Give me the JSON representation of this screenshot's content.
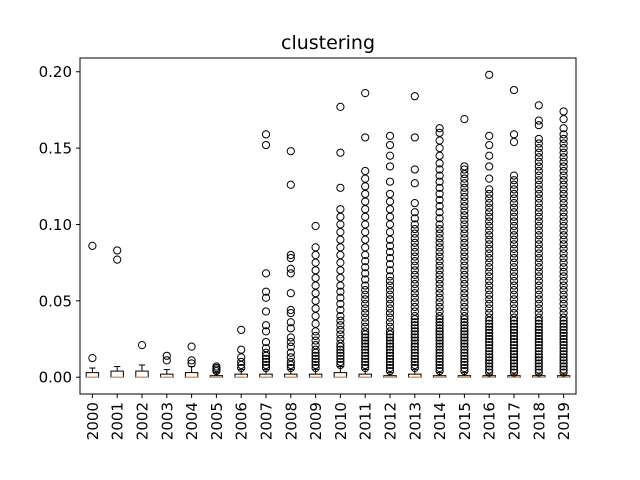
{
  "chart_data": {
    "type": "box",
    "title": "clustering",
    "xlabel": "",
    "ylabel": "",
    "ylim": [
      -0.011,
      0.209
    ],
    "yticks": [
      0.0,
      0.05,
      0.1,
      0.15,
      0.2
    ],
    "ytick_labels": [
      "0.00",
      "0.05",
      "0.10",
      "0.15",
      "0.20"
    ],
    "grid": false,
    "median_color": "#f4a460",
    "categories": [
      "2000",
      "2001",
      "2002",
      "2003",
      "2004",
      "2005",
      "2006",
      "2007",
      "2008",
      "2009",
      "2010",
      "2011",
      "2012",
      "2013",
      "2014",
      "2015",
      "2016",
      "2017",
      "2018",
      "2019"
    ],
    "boxes": [
      {
        "year": "2000",
        "q1": 0.0,
        "median": 0.0,
        "q3": 0.003,
        "whisker_low": 0.0,
        "whisker_high": 0.006,
        "outliers": [
          0.0125,
          0.086
        ]
      },
      {
        "year": "2001",
        "q1": 0.0,
        "median": 0.0,
        "q3": 0.004,
        "whisker_low": 0.0,
        "whisker_high": 0.007,
        "outliers": [
          0.077,
          0.083
        ]
      },
      {
        "year": "2002",
        "q1": 0.0,
        "median": 0.0,
        "q3": 0.004,
        "whisker_low": 0.0,
        "whisker_high": 0.008,
        "outliers": [
          0.021
        ]
      },
      {
        "year": "2003",
        "q1": 0.0,
        "median": 0.0,
        "q3": 0.002,
        "whisker_low": 0.0,
        "whisker_high": 0.005,
        "outliers": [
          0.011,
          0.014
        ]
      },
      {
        "year": "2004",
        "q1": 0.0,
        "median": 0.0,
        "q3": 0.003,
        "whisker_low": 0.0,
        "whisker_high": 0.007,
        "outliers": [
          0.009,
          0.011,
          0.02
        ]
      },
      {
        "year": "2005",
        "q1": 0.0,
        "median": 0.0,
        "q3": 0.001,
        "whisker_low": 0.0,
        "whisker_high": 0.003,
        "outliers": [
          0.004,
          0.005,
          0.006,
          0.007
        ]
      },
      {
        "year": "2006",
        "q1": 0.0,
        "median": 0.0,
        "q3": 0.002,
        "whisker_low": 0.0,
        "whisker_high": 0.005,
        "outliers": [
          0.006,
          0.008,
          0.01,
          0.013,
          0.018,
          0.031
        ]
      },
      {
        "year": "2007",
        "q1": 0.0,
        "median": 0.0,
        "q3": 0.002,
        "whisker_low": 0.0,
        "whisker_high": 0.005,
        "outliers": [
          0.006,
          0.008,
          0.01,
          0.012,
          0.014,
          0.016,
          0.019,
          0.023,
          0.03,
          0.034,
          0.043,
          0.052,
          0.056,
          0.068,
          0.152,
          0.159
        ]
      },
      {
        "year": "2008",
        "q1": 0.0,
        "median": 0.0,
        "q3": 0.002,
        "whisker_low": 0.0,
        "whisker_high": 0.005,
        "outliers": [
          0.006,
          0.008,
          0.01,
          0.013,
          0.016,
          0.02,
          0.023,
          0.026,
          0.032,
          0.036,
          0.042,
          0.044,
          0.055,
          0.068,
          0.071,
          0.078,
          0.08,
          0.126,
          0.148
        ]
      },
      {
        "year": "2009",
        "q1": 0.0,
        "median": 0.0,
        "q3": 0.002,
        "whisker_low": 0.0,
        "whisker_high": 0.005,
        "outliers": [
          0.006,
          0.008,
          0.01,
          0.012,
          0.014,
          0.016,
          0.018,
          0.021,
          0.024,
          0.027,
          0.03,
          0.035,
          0.04,
          0.045,
          0.05,
          0.055,
          0.06,
          0.065,
          0.07,
          0.075,
          0.08,
          0.085,
          0.099
        ]
      },
      {
        "year": "2010",
        "q1": 0.0,
        "median": 0.0,
        "q3": 0.003,
        "whisker_low": 0.0,
        "whisker_high": 0.007,
        "outliers": [
          0.008,
          0.01,
          0.012,
          0.014,
          0.016,
          0.018,
          0.02,
          0.022,
          0.025,
          0.028,
          0.031,
          0.034,
          0.037,
          0.04,
          0.044,
          0.048,
          0.052,
          0.056,
          0.06,
          0.065,
          0.07,
          0.075,
          0.08,
          0.085,
          0.09,
          0.095,
          0.1,
          0.105,
          0.11,
          0.124,
          0.147,
          0.177
        ]
      },
      {
        "year": "2011",
        "q1": 0.0,
        "median": 0.0,
        "q3": 0.002,
        "whisker_low": 0.0,
        "whisker_high": 0.005,
        "outliers": [
          0.006,
          0.008,
          0.01,
          0.012,
          0.014,
          0.016,
          0.018,
          0.02,
          0.022,
          0.024,
          0.026,
          0.028,
          0.03,
          0.033,
          0.036,
          0.039,
          0.042,
          0.045,
          0.048,
          0.051,
          0.054,
          0.057,
          0.06,
          0.064,
          0.068,
          0.072,
          0.076,
          0.08,
          0.085,
          0.09,
          0.095,
          0.1,
          0.105,
          0.11,
          0.115,
          0.12,
          0.125,
          0.13,
          0.135,
          0.157,
          0.186
        ]
      },
      {
        "year": "2012",
        "q1": 0.0,
        "median": 0.0,
        "q3": 0.001,
        "whisker_low": 0.0,
        "whisker_high": 0.003,
        "outliers": [
          0.004,
          0.006,
          0.008,
          0.01,
          0.012,
          0.014,
          0.016,
          0.018,
          0.02,
          0.022,
          0.024,
          0.026,
          0.028,
          0.03,
          0.033,
          0.036,
          0.039,
          0.042,
          0.045,
          0.048,
          0.051,
          0.054,
          0.057,
          0.06,
          0.063,
          0.066,
          0.07,
          0.074,
          0.078,
          0.082,
          0.086,
          0.09,
          0.095,
          0.1,
          0.105,
          0.11,
          0.115,
          0.12,
          0.128,
          0.138,
          0.145,
          0.152,
          0.158
        ]
      },
      {
        "year": "2013",
        "q1": 0.0,
        "median": 0.0,
        "q3": 0.002,
        "whisker_low": 0.0,
        "whisker_high": 0.005,
        "outliers": [
          0.006,
          0.008,
          0.01,
          0.012,
          0.014,
          0.016,
          0.018,
          0.02,
          0.022,
          0.024,
          0.026,
          0.028,
          0.03,
          0.032,
          0.034,
          0.036,
          0.038,
          0.04,
          0.043,
          0.046,
          0.049,
          0.052,
          0.055,
          0.058,
          0.061,
          0.064,
          0.067,
          0.07,
          0.073,
          0.076,
          0.079,
          0.082,
          0.085,
          0.088,
          0.091,
          0.094,
          0.097,
          0.1,
          0.104,
          0.108,
          0.114,
          0.127,
          0.136,
          0.157,
          0.184
        ]
      },
      {
        "year": "2014",
        "q1": 0.0,
        "median": 0.0,
        "q3": 0.001,
        "whisker_low": 0.0,
        "whisker_high": 0.003,
        "outliers": [
          0.004,
          0.006,
          0.008,
          0.01,
          0.012,
          0.014,
          0.016,
          0.018,
          0.02,
          0.022,
          0.024,
          0.026,
          0.028,
          0.03,
          0.032,
          0.034,
          0.036,
          0.038,
          0.04,
          0.043,
          0.046,
          0.049,
          0.052,
          0.055,
          0.058,
          0.061,
          0.064,
          0.067,
          0.07,
          0.073,
          0.076,
          0.079,
          0.082,
          0.085,
          0.088,
          0.091,
          0.094,
          0.097,
          0.1,
          0.104,
          0.108,
          0.112,
          0.116,
          0.12,
          0.124,
          0.128,
          0.132,
          0.136,
          0.14,
          0.145,
          0.15,
          0.155,
          0.16,
          0.163
        ]
      },
      {
        "year": "2015",
        "q1": 0.0,
        "median": 0.0,
        "q3": 0.001,
        "whisker_low": 0.0,
        "whisker_high": 0.003,
        "outliers": [
          0.004,
          0.006,
          0.008,
          0.01,
          0.012,
          0.014,
          0.016,
          0.018,
          0.02,
          0.022,
          0.024,
          0.026,
          0.028,
          0.03,
          0.032,
          0.034,
          0.036,
          0.038,
          0.04,
          0.043,
          0.046,
          0.049,
          0.052,
          0.055,
          0.058,
          0.061,
          0.064,
          0.067,
          0.07,
          0.073,
          0.076,
          0.079,
          0.082,
          0.085,
          0.088,
          0.091,
          0.094,
          0.097,
          0.1,
          0.103,
          0.106,
          0.109,
          0.112,
          0.115,
          0.118,
          0.121,
          0.124,
          0.127,
          0.13,
          0.133,
          0.136,
          0.138,
          0.169
        ]
      },
      {
        "year": "2016",
        "q1": 0.0,
        "median": 0.0,
        "q3": 0.001,
        "whisker_low": 0.0,
        "whisker_high": 0.002,
        "outliers": [
          0.003,
          0.005,
          0.007,
          0.009,
          0.011,
          0.013,
          0.015,
          0.017,
          0.019,
          0.021,
          0.023,
          0.025,
          0.027,
          0.029,
          0.031,
          0.033,
          0.035,
          0.037,
          0.039,
          0.042,
          0.045,
          0.048,
          0.051,
          0.054,
          0.057,
          0.06,
          0.063,
          0.066,
          0.069,
          0.072,
          0.075,
          0.078,
          0.081,
          0.084,
          0.087,
          0.09,
          0.093,
          0.096,
          0.099,
          0.102,
          0.105,
          0.108,
          0.111,
          0.114,
          0.117,
          0.12,
          0.123,
          0.13,
          0.138,
          0.145,
          0.152,
          0.158,
          0.198
        ]
      },
      {
        "year": "2017",
        "q1": 0.0,
        "median": 0.0,
        "q3": 0.001,
        "whisker_low": 0.0,
        "whisker_high": 0.002,
        "outliers": [
          0.003,
          0.005,
          0.007,
          0.009,
          0.011,
          0.013,
          0.015,
          0.017,
          0.019,
          0.021,
          0.023,
          0.025,
          0.027,
          0.029,
          0.031,
          0.033,
          0.035,
          0.037,
          0.039,
          0.042,
          0.045,
          0.048,
          0.051,
          0.054,
          0.057,
          0.06,
          0.063,
          0.066,
          0.069,
          0.072,
          0.075,
          0.078,
          0.081,
          0.084,
          0.087,
          0.09,
          0.093,
          0.096,
          0.099,
          0.102,
          0.105,
          0.108,
          0.111,
          0.114,
          0.117,
          0.12,
          0.123,
          0.126,
          0.129,
          0.132,
          0.154,
          0.159,
          0.188
        ]
      },
      {
        "year": "2018",
        "q1": 0.0,
        "median": 0.0,
        "q3": 0.001,
        "whisker_low": 0.0,
        "whisker_high": 0.002,
        "outliers": [
          0.003,
          0.005,
          0.007,
          0.009,
          0.011,
          0.013,
          0.015,
          0.017,
          0.019,
          0.021,
          0.023,
          0.025,
          0.027,
          0.029,
          0.031,
          0.033,
          0.035,
          0.037,
          0.039,
          0.042,
          0.045,
          0.048,
          0.051,
          0.054,
          0.057,
          0.06,
          0.063,
          0.066,
          0.069,
          0.072,
          0.075,
          0.078,
          0.081,
          0.084,
          0.087,
          0.09,
          0.093,
          0.096,
          0.099,
          0.102,
          0.105,
          0.108,
          0.111,
          0.114,
          0.117,
          0.12,
          0.123,
          0.126,
          0.129,
          0.132,
          0.135,
          0.138,
          0.141,
          0.144,
          0.147,
          0.15,
          0.153,
          0.156,
          0.165,
          0.168,
          0.178
        ]
      },
      {
        "year": "2019",
        "q1": 0.0,
        "median": 0.0,
        "q3": 0.001,
        "whisker_low": 0.0,
        "whisker_high": 0.002,
        "outliers": [
          0.003,
          0.005,
          0.007,
          0.009,
          0.011,
          0.013,
          0.015,
          0.017,
          0.019,
          0.021,
          0.023,
          0.025,
          0.027,
          0.029,
          0.031,
          0.033,
          0.035,
          0.037,
          0.039,
          0.042,
          0.045,
          0.048,
          0.051,
          0.054,
          0.057,
          0.06,
          0.063,
          0.066,
          0.069,
          0.072,
          0.075,
          0.078,
          0.081,
          0.084,
          0.087,
          0.09,
          0.093,
          0.096,
          0.099,
          0.102,
          0.105,
          0.108,
          0.111,
          0.114,
          0.117,
          0.12,
          0.123,
          0.126,
          0.129,
          0.132,
          0.135,
          0.138,
          0.141,
          0.144,
          0.147,
          0.15,
          0.153,
          0.156,
          0.159,
          0.163,
          0.169,
          0.174
        ]
      }
    ]
  }
}
